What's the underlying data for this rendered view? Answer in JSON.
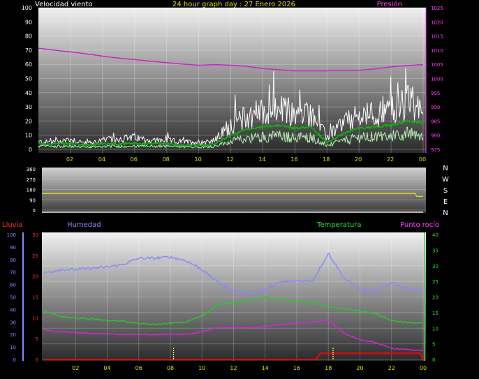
{
  "header": {
    "left": "Velocidad viento",
    "center": "24 hour graph day : 27 Enero 2026",
    "right": "Presión"
  },
  "compass": [
    "N",
    "W",
    "S",
    "E",
    "N"
  ],
  "bottom_labels": {
    "rain": "Lluvia",
    "humidity": "Humedad",
    "temperature": "Temperatura",
    "dewpoint": "Punto rocío"
  },
  "colors": {
    "wind_gust": "#ffffff",
    "wind_avg": "#00c000",
    "wind_light": "#b8f0b8",
    "pressure": "#d020d0",
    "direction": "#e0e000",
    "rain": "#ff0000",
    "humidity": "#8888ff",
    "temperature": "#20d020",
    "dewpoint": "#e020e0",
    "rain_marker": "#ffff60"
  },
  "chart_data": [
    {
      "type": "line",
      "name": "wind-pressure",
      "x_ticks": [
        "02",
        "04",
        "06",
        "08",
        "10",
        "12",
        "14",
        "16",
        "18",
        "20",
        "22",
        "00"
      ],
      "y_left": {
        "ticks": [
          0,
          10,
          20,
          30,
          40,
          50,
          60,
          70,
          80,
          90,
          100
        ],
        "range": [
          0,
          100
        ]
      },
      "y_right": {
        "ticks": [
          975,
          980,
          985,
          990,
          995,
          1000,
          1005,
          1010,
          1015,
          1020,
          1025
        ],
        "range": [
          975,
          1025
        ]
      },
      "hours": [
        0,
        1,
        2,
        3,
        4,
        5,
        6,
        7,
        8,
        9,
        10,
        11,
        12,
        13,
        14,
        15,
        16,
        17,
        18,
        19,
        20,
        21,
        22,
        23,
        24
      ],
      "series": [
        {
          "key": "gust",
          "axis": "left",
          "values": [
            5,
            5,
            7,
            4,
            6,
            7,
            8,
            6,
            6,
            5,
            5,
            6,
            17,
            22,
            25,
            27,
            23,
            24,
            8,
            18,
            22,
            24,
            26,
            32,
            24
          ]
        },
        {
          "key": "avg",
          "axis": "left",
          "values": [
            4,
            4,
            4,
            3,
            4,
            4,
            4,
            4,
            4,
            3,
            3,
            4,
            10,
            14,
            16,
            17,
            15,
            16,
            5,
            11,
            15,
            16,
            17,
            20,
            19
          ]
        },
        {
          "key": "pressure",
          "axis": "right",
          "values": [
            1010.7,
            1010.0,
            1009.4,
            1008.7,
            1007.9,
            1007.2,
            1006.7,
            1006.1,
            1005.6,
            1005.1,
            1004.7,
            1004.9,
            1004.7,
            1004.3,
            1003.5,
            1003.1,
            1002.7,
            1002.7,
            1002.7,
            1002.9,
            1002.9,
            1003.4,
            1004.1,
            1004.6,
            1004.9
          ]
        }
      ]
    },
    {
      "type": "line",
      "name": "wind-direction",
      "y_left": {
        "ticks": [
          0,
          90,
          180,
          270,
          360
        ],
        "range": [
          0,
          360
        ]
      },
      "hours": [
        0,
        12,
        23.5,
        23.6,
        24
      ],
      "series": [
        {
          "key": "direction",
          "values": [
            145,
            145,
            145,
            120,
            120
          ]
        }
      ]
    },
    {
      "type": "line",
      "name": "rain-humidity-temp",
      "x_ticks": [
        "02",
        "04",
        "06",
        "08",
        "10",
        "12",
        "14",
        "16",
        "18",
        "20",
        "22",
        "00"
      ],
      "y_left_rain": {
        "ticks": [
          0,
          5,
          10,
          15,
          20,
          25,
          30
        ],
        "range": [
          0,
          30
        ]
      },
      "y_left_humidity": {
        "ticks": [
          0,
          10,
          20,
          30,
          40,
          50,
          60,
          70,
          80,
          90,
          100
        ],
        "range": [
          0,
          100
        ]
      },
      "y_right": {
        "ticks": [
          0,
          5,
          10,
          15,
          20,
          25,
          30,
          35,
          40
        ],
        "range": [
          0,
          40
        ]
      },
      "hours": [
        0,
        1,
        2,
        3,
        4,
        5,
        6,
        7,
        8,
        9,
        10,
        11,
        12,
        13,
        14,
        15,
        16,
        17,
        18,
        19,
        20,
        21,
        22,
        23,
        24
      ],
      "series": [
        {
          "key": "humidity",
          "axis": "humidity",
          "values": [
            69,
            72,
            72,
            73,
            74,
            76,
            81,
            81,
            82,
            79,
            72,
            62,
            55,
            53,
            56,
            62,
            63,
            63,
            85,
            65,
            56,
            54,
            62,
            56,
            56
          ]
        },
        {
          "key": "temperature",
          "axis": "right",
          "values": [
            15.5,
            13.8,
            13.2,
            13.0,
            12.5,
            12.3,
            11.5,
            11.2,
            11.6,
            12.0,
            14.0,
            17.6,
            18.2,
            19.0,
            20.0,
            19.2,
            18.6,
            18.4,
            16.9,
            16.2,
            15.5,
            14.7,
            12.4,
            11.8,
            11.6
          ]
        },
        {
          "key": "dewpoint",
          "axis": "right",
          "values": [
            9.4,
            8.8,
            8.6,
            8.3,
            8.2,
            8.0,
            8.0,
            7.9,
            8.1,
            8.0,
            8.8,
            10.3,
            10.2,
            10.2,
            10.6,
            11.2,
            11.6,
            12.0,
            12.7,
            8.4,
            6.2,
            5.4,
            3.5,
            3.2,
            2.8
          ]
        },
        {
          "key": "rain",
          "axis": "rain",
          "hours": [
            0,
            17.2,
            17.5,
            23.8,
            24
          ],
          "values": [
            0,
            0,
            1.5,
            1.5,
            0
          ]
        }
      ],
      "rain_markers_hours": [
        8.2,
        18.3
      ]
    }
  ]
}
